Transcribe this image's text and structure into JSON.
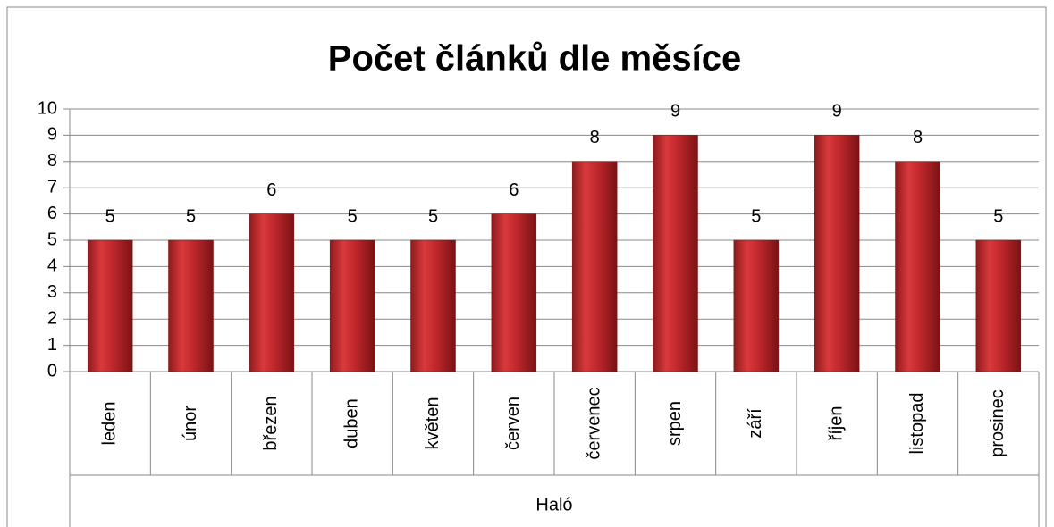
{
  "chart_data": {
    "type": "bar",
    "title": "Počet článků dle měsíce",
    "categories": [
      "leden",
      "únor",
      "březen",
      "duben",
      "květen",
      "červen",
      "červenec",
      "srpen",
      "září",
      "říjen",
      "listopad",
      "prosinec"
    ],
    "category_group": "Haló",
    "values": [
      5,
      5,
      6,
      5,
      5,
      6,
      8,
      9,
      5,
      9,
      8,
      5
    ],
    "color": "#c0282c",
    "ylim": [
      0,
      10
    ],
    "yticks": [
      0,
      1,
      2,
      3,
      4,
      5,
      6,
      7,
      8,
      9,
      10
    ],
    "grid": true,
    "data_labels": true
  }
}
